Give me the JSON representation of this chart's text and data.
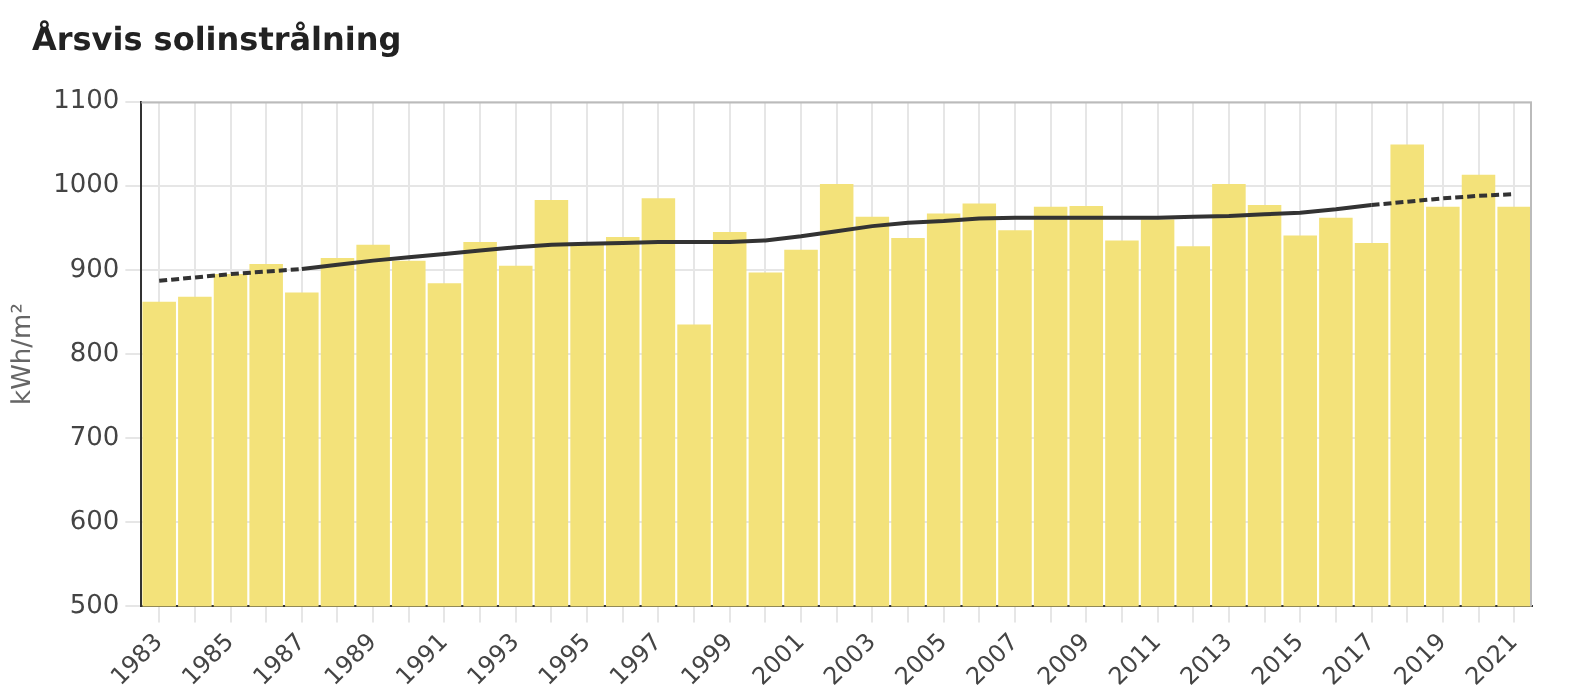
{
  "chart_data": {
    "type": "bar",
    "title": "Årsvis solinstrålning",
    "ylabel": "kWh/m²",
    "categories": [
      "1983",
      null,
      "1985",
      null,
      "1987",
      null,
      "1989",
      null,
      "1991",
      null,
      "1993",
      null,
      "1995",
      null,
      "1997",
      null,
      "1999",
      null,
      "2001",
      null,
      "2003",
      null,
      "2005",
      null,
      "2007",
      null,
      "2009",
      null,
      "2011",
      null,
      "2013",
      null,
      "2015",
      null,
      "2017",
      null,
      "2019",
      null,
      "2021"
    ],
    "series": [
      {
        "color": "#f3e27a",
        "values": [
          862,
          868,
          895,
          907,
          873,
          914,
          930,
          911,
          884,
          933,
          905,
          983,
          930,
          939,
          985,
          835,
          945,
          897,
          924,
          1002,
          963,
          938,
          967,
          979,
          947,
          975,
          976,
          935,
          960,
          928,
          1002,
          977,
          941,
          962,
          932,
          1049,
          975,
          1013,
          975
        ]
      },
      {
        "type": "line",
        "color": "#333333",
        "line_style": "dashed",
        "values": [
          887,
          891,
          895,
          898,
          901,
          null,
          null,
          null,
          null,
          null,
          null,
          null,
          null,
          null,
          null,
          null,
          null,
          null,
          null,
          null,
          null,
          null,
          null,
          null,
          null,
          null,
          null,
          null,
          null,
          null,
          null,
          null,
          null,
          null,
          null,
          null,
          null,
          null,
          null
        ]
      },
      {
        "type": "line",
        "color": "#333333",
        "line_style": "solid",
        "values": [
          null,
          null,
          null,
          null,
          901,
          906,
          911,
          915,
          919,
          923,
          927,
          930,
          931,
          932,
          933,
          933,
          933,
          935,
          940,
          946,
          952,
          956,
          958,
          961,
          962,
          962,
          962,
          962,
          962,
          963,
          964,
          966,
          968,
          972,
          977,
          null,
          null,
          null,
          null
        ]
      },
      {
        "type": "line",
        "color": "#333333",
        "line_style": "dashed",
        "values": [
          null,
          null,
          null,
          null,
          null,
          null,
          null,
          null,
          null,
          null,
          null,
          null,
          null,
          null,
          null,
          null,
          null,
          null,
          null,
          null,
          null,
          null,
          null,
          null,
          null,
          null,
          null,
          null,
          null,
          null,
          null,
          null,
          null,
          null,
          977,
          981,
          985,
          988,
          990
        ]
      }
    ],
    "ylim": [
      500,
      1100
    ],
    "yticks": [
      500,
      600,
      700,
      800,
      900,
      1000,
      1100
    ],
    "grid": true,
    "legend": false
  }
}
